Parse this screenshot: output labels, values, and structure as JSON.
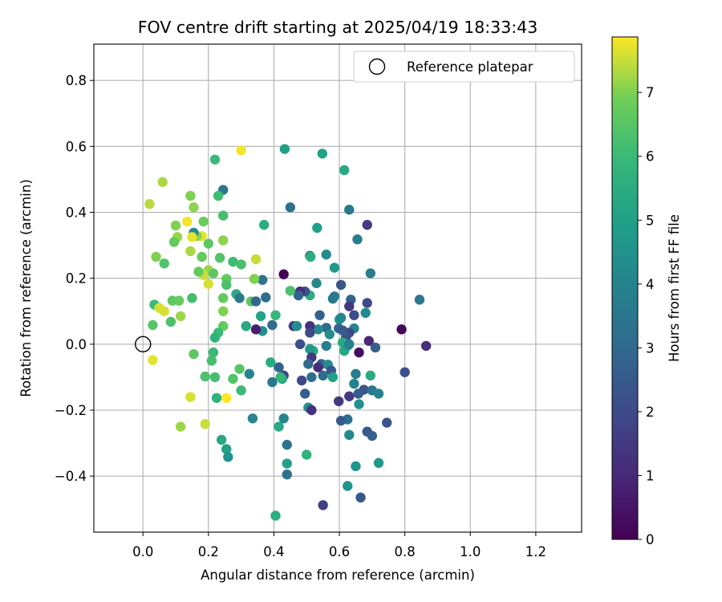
{
  "chart_data": {
    "type": "scatter",
    "title": "FOV centre drift starting at 2025/04/19 18:33:43",
    "xlabel": "Angular distance from reference (arcmin)",
    "ylabel": "Rotation from reference (arcmin)",
    "xlim": [
      -0.15,
      1.34
    ],
    "ylim": [
      -0.57,
      0.91
    ],
    "xticks": [
      0.0,
      0.2,
      0.4,
      0.6,
      0.8,
      1.0,
      1.2
    ],
    "xtick_labels": [
      "0.0",
      "0.2",
      "0.4",
      "0.6",
      "0.8",
      "1.0",
      "1.2"
    ],
    "yticks": [
      -0.4,
      -0.2,
      0.0,
      0.2,
      0.4,
      0.6,
      0.8
    ],
    "ytick_labels": [
      "−0.4",
      "−0.2",
      "0.0",
      "0.2",
      "0.4",
      "0.6",
      "0.8"
    ],
    "grid": true,
    "legend": {
      "position": "top-right",
      "entries": [
        "Reference platepar"
      ]
    },
    "reference_point": {
      "x": 0.0,
      "y": 0.0
    },
    "colorbar": {
      "label": "Hours from first FF file",
      "min": 0,
      "max": 7.87,
      "ticks": [
        0,
        1,
        2,
        3,
        4,
        5,
        6,
        7
      ],
      "tick_labels": [
        "0",
        "1",
        "2",
        "3",
        "4",
        "5",
        "6",
        "7"
      ],
      "colormap": "viridis"
    },
    "points": [
      {
        "x": 0.79,
        "y": 0.045,
        "h": 0.1
      },
      {
        "x": 0.865,
        "y": -0.005,
        "h": 1.2
      },
      {
        "x": 0.8,
        "y": -0.085,
        "h": 2.2
      },
      {
        "x": 0.845,
        "y": 0.135,
        "h": 3.5
      },
      {
        "x": 0.745,
        "y": -0.238,
        "h": 2.3
      },
      {
        "x": 0.685,
        "y": 0.362,
        "h": 1.6
      },
      {
        "x": 0.695,
        "y": 0.215,
        "h": 3.8
      },
      {
        "x": 0.685,
        "y": 0.125,
        "h": 2.0
      },
      {
        "x": 0.69,
        "y": 0.01,
        "h": 1.0
      },
      {
        "x": 0.71,
        "y": -0.01,
        "h": 2.6
      },
      {
        "x": 0.685,
        "y": -0.265,
        "h": 2.5
      },
      {
        "x": 0.7,
        "y": -0.278,
        "h": 2.7
      },
      {
        "x": 0.665,
        "y": -0.465,
        "h": 2.5
      },
      {
        "x": 0.55,
        "y": -0.488,
        "h": 1.7
      },
      {
        "x": 0.655,
        "y": 0.318,
        "h": 3.7
      },
      {
        "x": 0.63,
        "y": 0.408,
        "h": 3.6
      },
      {
        "x": 0.615,
        "y": 0.528,
        "h": 5.3
      },
      {
        "x": 0.548,
        "y": 0.578,
        "h": 5.0
      },
      {
        "x": 0.433,
        "y": 0.592,
        "h": 5.0
      },
      {
        "x": 0.45,
        "y": 0.415,
        "h": 3.3
      },
      {
        "x": 0.532,
        "y": 0.353,
        "h": 5.0
      },
      {
        "x": 0.51,
        "y": 0.268,
        "h": 2.8
      },
      {
        "x": 0.512,
        "y": 0.265,
        "h": 5.5
      },
      {
        "x": 0.56,
        "y": 0.272,
        "h": 4.2
      },
      {
        "x": 0.585,
        "y": 0.232,
        "h": 4.7
      },
      {
        "x": 0.58,
        "y": 0.138,
        "h": 3.7
      },
      {
        "x": 0.585,
        "y": 0.145,
        "h": 3.6
      },
      {
        "x": 0.605,
        "y": 0.18,
        "h": 2.3
      },
      {
        "x": 0.635,
        "y": 0.135,
        "h": 2.8
      },
      {
        "x": 0.63,
        "y": 0.115,
        "h": 1.4
      },
      {
        "x": 0.645,
        "y": 0.088,
        "h": 2.1
      },
      {
        "x": 0.68,
        "y": 0.095,
        "h": 4.3
      },
      {
        "x": 0.645,
        "y": 0.048,
        "h": 4.0
      },
      {
        "x": 0.63,
        "y": 0.035,
        "h": 1.9
      },
      {
        "x": 0.62,
        "y": 0.02,
        "h": 2.3
      },
      {
        "x": 0.6,
        "y": 0.075,
        "h": 4.9
      },
      {
        "x": 0.605,
        "y": 0.08,
        "h": 4.1
      },
      {
        "x": 0.598,
        "y": 0.048,
        "h": 3.0
      },
      {
        "x": 0.61,
        "y": 0.042,
        "h": 2.5
      },
      {
        "x": 0.61,
        "y": 0.005,
        "h": 5.4
      },
      {
        "x": 0.615,
        "y": -0.02,
        "h": 5.3
      },
      {
        "x": 0.625,
        "y": -0.005,
        "h": 4.8
      },
      {
        "x": 0.63,
        "y": 0.0,
        "h": 3.9
      },
      {
        "x": 0.66,
        "y": -0.025,
        "h": 0.3
      },
      {
        "x": 0.65,
        "y": -0.09,
        "h": 3.7
      },
      {
        "x": 0.645,
        "y": -0.12,
        "h": 3.9
      },
      {
        "x": 0.695,
        "y": -0.095,
        "h": 5.4
      },
      {
        "x": 0.675,
        "y": -0.138,
        "h": 2.4
      },
      {
        "x": 0.7,
        "y": -0.14,
        "h": 3.5
      },
      {
        "x": 0.72,
        "y": -0.15,
        "h": 3.9
      },
      {
        "x": 0.63,
        "y": -0.158,
        "h": 1.6
      },
      {
        "x": 0.658,
        "y": -0.15,
        "h": 2.6
      },
      {
        "x": 0.66,
        "y": -0.182,
        "h": 4.5
      },
      {
        "x": 0.598,
        "y": -0.173,
        "h": 1.5
      },
      {
        "x": 0.625,
        "y": -0.228,
        "h": 3.3
      },
      {
        "x": 0.605,
        "y": -0.232,
        "h": 2.5
      },
      {
        "x": 0.63,
        "y": -0.275,
        "h": 4.2
      },
      {
        "x": 0.65,
        "y": -0.37,
        "h": 4.6
      },
      {
        "x": 0.625,
        "y": -0.43,
        "h": 4.6
      },
      {
        "x": 0.72,
        "y": -0.36,
        "h": 4.7
      },
      {
        "x": 0.56,
        "y": 0.05,
        "h": 3.0
      },
      {
        "x": 0.57,
        "y": 0.03,
        "h": 4.4
      },
      {
        "x": 0.54,
        "y": 0.088,
        "h": 2.8
      },
      {
        "x": 0.535,
        "y": 0.045,
        "h": 4.3
      },
      {
        "x": 0.53,
        "y": 0.185,
        "h": 4.2
      },
      {
        "x": 0.51,
        "y": 0.148,
        "h": 5.5
      },
      {
        "x": 0.495,
        "y": 0.16,
        "h": 2.3
      },
      {
        "x": 0.48,
        "y": 0.16,
        "h": 1.1
      },
      {
        "x": 0.475,
        "y": 0.148,
        "h": 2.8
      },
      {
        "x": 0.46,
        "y": 0.055,
        "h": 1.4
      },
      {
        "x": 0.47,
        "y": 0.055,
        "h": 4.3
      },
      {
        "x": 0.51,
        "y": 0.055,
        "h": 1.2
      },
      {
        "x": 0.51,
        "y": 0.035,
        "h": 2.0
      },
      {
        "x": 0.545,
        "y": -0.06,
        "h": 2.9
      },
      {
        "x": 0.56,
        "y": -0.005,
        "h": 3.8
      },
      {
        "x": 0.565,
        "y": -0.062,
        "h": 4.2
      },
      {
        "x": 0.575,
        "y": -0.08,
        "h": 2.3
      },
      {
        "x": 0.58,
        "y": -0.1,
        "h": 5.0
      },
      {
        "x": 0.55,
        "y": -0.095,
        "h": 3.1
      },
      {
        "x": 0.52,
        "y": -0.02,
        "h": 5.4
      },
      {
        "x": 0.51,
        "y": -0.015,
        "h": 4.7
      },
      {
        "x": 0.515,
        "y": -0.04,
        "h": 1.5
      },
      {
        "x": 0.505,
        "y": -0.06,
        "h": 3.1
      },
      {
        "x": 0.48,
        "y": 0.0,
        "h": 2.2
      },
      {
        "x": 0.485,
        "y": -0.11,
        "h": 1.9
      },
      {
        "x": 0.515,
        "y": -0.1,
        "h": 3.2
      },
      {
        "x": 0.495,
        "y": -0.15,
        "h": 2.6
      },
      {
        "x": 0.505,
        "y": -0.192,
        "h": 4.4
      },
      {
        "x": 0.515,
        "y": -0.2,
        "h": 1.2
      },
      {
        "x": 0.535,
        "y": -0.07,
        "h": 1.1
      },
      {
        "x": 0.43,
        "y": 0.212,
        "h": 0.1
      },
      {
        "x": 0.45,
        "y": 0.162,
        "h": 6.3
      },
      {
        "x": 0.43,
        "y": -0.095,
        "h": 1.8
      },
      {
        "x": 0.425,
        "y": -0.105,
        "h": 5.1
      },
      {
        "x": 0.415,
        "y": -0.07,
        "h": 2.8
      },
      {
        "x": 0.42,
        "y": -0.1,
        "h": 5.9
      },
      {
        "x": 0.43,
        "y": -0.225,
        "h": 4.1
      },
      {
        "x": 0.415,
        "y": -0.25,
        "h": 5.3
      },
      {
        "x": 0.44,
        "y": -0.305,
        "h": 3.4
      },
      {
        "x": 0.44,
        "y": -0.362,
        "h": 5.0
      },
      {
        "x": 0.44,
        "y": -0.395,
        "h": 3.3
      },
      {
        "x": 0.5,
        "y": -0.335,
        "h": 5.7
      },
      {
        "x": 0.405,
        "y": -0.52,
        "h": 5.5
      },
      {
        "x": 0.395,
        "y": 0.058,
        "h": 3.1
      },
      {
        "x": 0.405,
        "y": 0.088,
        "h": 5.9
      },
      {
        "x": 0.375,
        "y": 0.142,
        "h": 3.1
      },
      {
        "x": 0.365,
        "y": 0.195,
        "h": 3.4
      },
      {
        "x": 0.37,
        "y": 0.362,
        "h": 5.5
      },
      {
        "x": 0.36,
        "y": 0.085,
        "h": 5.1
      },
      {
        "x": 0.365,
        "y": 0.04,
        "h": 4.4
      },
      {
        "x": 0.345,
        "y": 0.045,
        "h": 0.7
      },
      {
        "x": 0.39,
        "y": -0.055,
        "h": 5.4
      },
      {
        "x": 0.395,
        "y": -0.115,
        "h": 3.5
      },
      {
        "x": 0.335,
        "y": -0.225,
        "h": 4.0
      },
      {
        "x": 0.325,
        "y": -0.09,
        "h": 4.0
      },
      {
        "x": 0.345,
        "y": 0.258,
        "h": 7.5
      },
      {
        "x": 0.34,
        "y": 0.198,
        "h": 7.0
      },
      {
        "x": 0.33,
        "y": 0.13,
        "h": 6.6
      },
      {
        "x": 0.345,
        "y": 0.13,
        "h": 2.9
      },
      {
        "x": 0.315,
        "y": 0.055,
        "h": 5.3
      },
      {
        "x": 0.3,
        "y": 0.588,
        "h": 7.8
      },
      {
        "x": 0.3,
        "y": 0.242,
        "h": 6.3
      },
      {
        "x": 0.275,
        "y": 0.25,
        "h": 6.1
      },
      {
        "x": 0.285,
        "y": 0.152,
        "h": 5.4
      },
      {
        "x": 0.295,
        "y": 0.14,
        "h": 3.6
      },
      {
        "x": 0.295,
        "y": -0.075,
        "h": 6.5
      },
      {
        "x": 0.275,
        "y": -0.105,
        "h": 6.4
      },
      {
        "x": 0.3,
        "y": -0.14,
        "h": 6.0
      },
      {
        "x": 0.255,
        "y": -0.163,
        "h": 7.9
      },
      {
        "x": 0.255,
        "y": -0.318,
        "h": 5.0
      },
      {
        "x": 0.26,
        "y": -0.342,
        "h": 4.6
      },
      {
        "x": 0.24,
        "y": -0.29,
        "h": 5.3
      },
      {
        "x": 0.255,
        "y": 0.198,
        "h": 6.7
      },
      {
        "x": 0.255,
        "y": 0.18,
        "h": 6.3
      },
      {
        "x": 0.245,
        "y": 0.39,
        "h": 6.2
      },
      {
        "x": 0.245,
        "y": 0.468,
        "h": 3.5
      },
      {
        "x": 0.23,
        "y": 0.45,
        "h": 6.1
      },
      {
        "x": 0.22,
        "y": 0.56,
        "h": 6.0
      },
      {
        "x": 0.245,
        "y": 0.315,
        "h": 7.1
      },
      {
        "x": 0.235,
        "y": 0.262,
        "h": 6.4
      },
      {
        "x": 0.245,
        "y": 0.14,
        "h": 6.7
      },
      {
        "x": 0.245,
        "y": 0.1,
        "h": 7.0
      },
      {
        "x": 0.245,
        "y": 0.055,
        "h": 6.7
      },
      {
        "x": 0.23,
        "y": 0.035,
        "h": 6.0
      },
      {
        "x": 0.22,
        "y": 0.02,
        "h": 5.7
      },
      {
        "x": 0.215,
        "y": -0.025,
        "h": 6.0
      },
      {
        "x": 0.21,
        "y": -0.05,
        "h": 6.2
      },
      {
        "x": 0.22,
        "y": -0.1,
        "h": 6.2
      },
      {
        "x": 0.225,
        "y": -0.163,
        "h": 5.7
      },
      {
        "x": 0.2,
        "y": 0.305,
        "h": 6.6
      },
      {
        "x": 0.185,
        "y": 0.372,
        "h": 6.8
      },
      {
        "x": 0.2,
        "y": 0.225,
        "h": 7.2
      },
      {
        "x": 0.215,
        "y": 0.215,
        "h": 6.6
      },
      {
        "x": 0.185,
        "y": 0.21,
        "h": 7.5
      },
      {
        "x": 0.2,
        "y": 0.183,
        "h": 7.6
      },
      {
        "x": 0.18,
        "y": 0.265,
        "h": 6.7
      },
      {
        "x": 0.18,
        "y": 0.328,
        "h": 7.7
      },
      {
        "x": 0.165,
        "y": 0.328,
        "h": 7.1
      },
      {
        "x": 0.155,
        "y": 0.338,
        "h": 4.2
      },
      {
        "x": 0.15,
        "y": 0.325,
        "h": 7.7
      },
      {
        "x": 0.155,
        "y": 0.415,
        "h": 7.1
      },
      {
        "x": 0.145,
        "y": 0.45,
        "h": 7.0
      },
      {
        "x": 0.135,
        "y": 0.372,
        "h": 7.8
      },
      {
        "x": 0.145,
        "y": 0.282,
        "h": 7.3
      },
      {
        "x": 0.17,
        "y": 0.22,
        "h": 6.7
      },
      {
        "x": 0.15,
        "y": 0.14,
        "h": 6.2
      },
      {
        "x": 0.19,
        "y": -0.098,
        "h": 6.3
      },
      {
        "x": 0.155,
        "y": -0.03,
        "h": 6.6
      },
      {
        "x": 0.145,
        "y": -0.16,
        "h": 7.6
      },
      {
        "x": 0.19,
        "y": -0.242,
        "h": 7.5
      },
      {
        "x": 0.115,
        "y": -0.25,
        "h": 7.2
      },
      {
        "x": 0.1,
        "y": 0.36,
        "h": 7.0
      },
      {
        "x": 0.105,
        "y": 0.325,
        "h": 7.2
      },
      {
        "x": 0.095,
        "y": 0.31,
        "h": 6.7
      },
      {
        "x": 0.06,
        "y": 0.492,
        "h": 7.3
      },
      {
        "x": 0.065,
        "y": 0.245,
        "h": 6.4
      },
      {
        "x": 0.04,
        "y": 0.265,
        "h": 7.0
      },
      {
        "x": 0.02,
        "y": 0.425,
        "h": 7.4
      },
      {
        "x": 0.035,
        "y": 0.12,
        "h": 6.0
      },
      {
        "x": 0.05,
        "y": 0.11,
        "h": 7.6
      },
      {
        "x": 0.065,
        "y": 0.1,
        "h": 7.6
      },
      {
        "x": 0.09,
        "y": 0.132,
        "h": 6.6
      },
      {
        "x": 0.11,
        "y": 0.132,
        "h": 6.7
      },
      {
        "x": 0.115,
        "y": 0.085,
        "h": 7.2
      },
      {
        "x": 0.085,
        "y": 0.068,
        "h": 6.3
      },
      {
        "x": 0.03,
        "y": 0.058,
        "h": 6.5
      },
      {
        "x": 0.03,
        "y": -0.048,
        "h": 7.7
      }
    ]
  }
}
